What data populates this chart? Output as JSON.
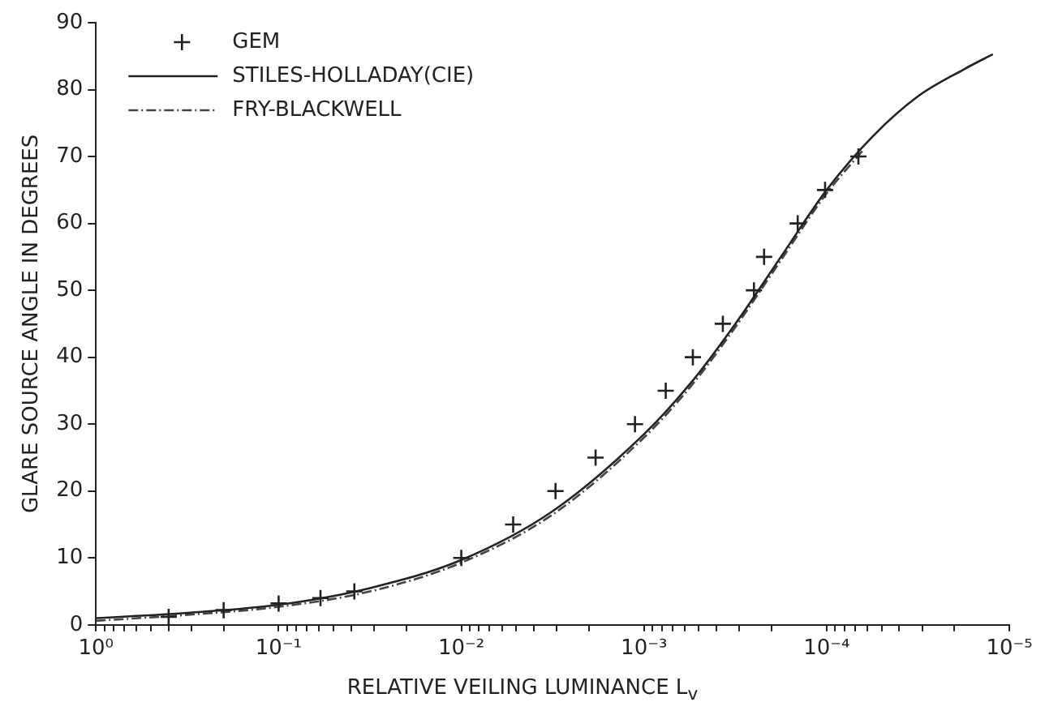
{
  "chart_data": {
    "type": "line",
    "xlabel": "RELATIVE VEILING LUMINANCE L$_{v}$",
    "ylabel": "GLARE SOURCE ANGLE IN DEGREES",
    "log": "x",
    "xlim": [
      1,
      1e-05
    ],
    "ylim": [
      0,
      90
    ],
    "xticks": [
      {
        "value": 1,
        "label": "10⁰"
      },
      {
        "value": 0.9,
        "label": null
      },
      {
        "value": 0.8,
        "label": null
      },
      {
        "value": 0.7,
        "label": null
      },
      {
        "value": 0.6,
        "label": null
      },
      {
        "value": 0.5,
        "label": null
      },
      {
        "value": 0.4,
        "label": null
      },
      {
        "value": 0.3,
        "label": null
      },
      {
        "value": 0.2,
        "label": null
      },
      {
        "value": 0.1,
        "label": "10⁻¹"
      },
      {
        "value": 0.09,
        "label": null
      },
      {
        "value": 0.08,
        "label": null
      },
      {
        "value": 0.07,
        "label": null
      },
      {
        "value": 0.06,
        "label": null
      },
      {
        "value": 0.05,
        "label": null
      },
      {
        "value": 0.04,
        "label": null
      },
      {
        "value": 0.03,
        "label": null
      },
      {
        "value": 0.02,
        "label": null
      },
      {
        "value": 0.01,
        "label": "10⁻²"
      },
      {
        "value": 0.009,
        "label": null
      },
      {
        "value": 0.008,
        "label": null
      },
      {
        "value": 0.007,
        "label": null
      },
      {
        "value": 0.006,
        "label": null
      },
      {
        "value": 0.005,
        "label": null
      },
      {
        "value": 0.004,
        "label": null
      },
      {
        "value": 0.003,
        "label": null
      },
      {
        "value": 0.002,
        "label": null
      },
      {
        "value": 0.001,
        "label": "10⁻³"
      },
      {
        "value": 0.0009,
        "label": null
      },
      {
        "value": 0.0008,
        "label": null
      },
      {
        "value": 0.0007,
        "label": null
      },
      {
        "value": 0.0006,
        "label": null
      },
      {
        "value": 0.0005,
        "label": null
      },
      {
        "value": 0.0004,
        "label": null
      },
      {
        "value": 0.0003,
        "label": null
      },
      {
        "value": 0.0002,
        "label": null
      },
      {
        "value": 0.0001,
        "label": "10⁻⁴"
      },
      {
        "value": 9e-05,
        "label": null
      },
      {
        "value": 8e-05,
        "label": null
      },
      {
        "value": 7e-05,
        "label": null
      },
      {
        "value": 6e-05,
        "label": null
      },
      {
        "value": 5e-05,
        "label": null
      },
      {
        "value": 4e-05,
        "label": null
      },
      {
        "value": 3e-05,
        "label": null
      },
      {
        "value": 2e-05,
        "label": null
      },
      {
        "value": 1e-05,
        "label": "10⁻⁵"
      }
    ],
    "yticks": [
      0,
      10,
      20,
      30,
      40,
      50,
      60,
      70,
      80,
      90
    ],
    "grid": false,
    "legend": "top left",
    "series": [
      {
        "name": "GEM",
        "type": "scatter",
        "marker": "cross",
        "color": "#222222",
        "x": [
          0.4,
          0.2,
          0.1,
          0.059,
          0.0385,
          0.01,
          0.0052,
          0.00305,
          0.00184,
          0.00112,
          0.00076,
          0.00054,
          0.00037,
          0.00025,
          0.00022,
          0.000144,
          0.000102,
          6.7e-05
        ],
        "values": [
          1.2,
          2.2,
          3.2,
          4,
          5,
          10,
          15,
          20,
          25,
          30,
          35,
          40,
          45,
          50,
          55,
          60,
          65,
          70
        ]
      },
      {
        "name": "STILES-HOLLADAY(CIE)",
        "marker": "none",
        "line_style": "solid",
        "color": "#222222",
        "x": [
          1,
          0.316,
          0.1,
          0.0316,
          0.01,
          0.00316,
          0.001,
          0.00056,
          0.000316,
          0.000178,
          0.0001,
          5.6e-05,
          3.16e-05,
          1.78e-05,
          1.23e-05
        ],
        "values": [
          1,
          1.8,
          3,
          5.5,
          9.7,
          17,
          28.5,
          36,
          45,
          55,
          65,
          73,
          79,
          83,
          85.3
        ]
      },
      {
        "name": "FRY-BLACKWELL",
        "marker": "none",
        "line_style": "dashed",
        "color": "#444444",
        "x": [
          1,
          0.316,
          0.1,
          0.0316,
          0.01,
          0.00316,
          0.001,
          0.00056,
          0.000316,
          0.000178,
          0.0001,
          6.3e-05
        ],
        "values": [
          0.6,
          1.5,
          2.7,
          5,
          9.3,
          16.5,
          28,
          35.5,
          44.5,
          54.5,
          64.5,
          71
        ]
      }
    ]
  }
}
